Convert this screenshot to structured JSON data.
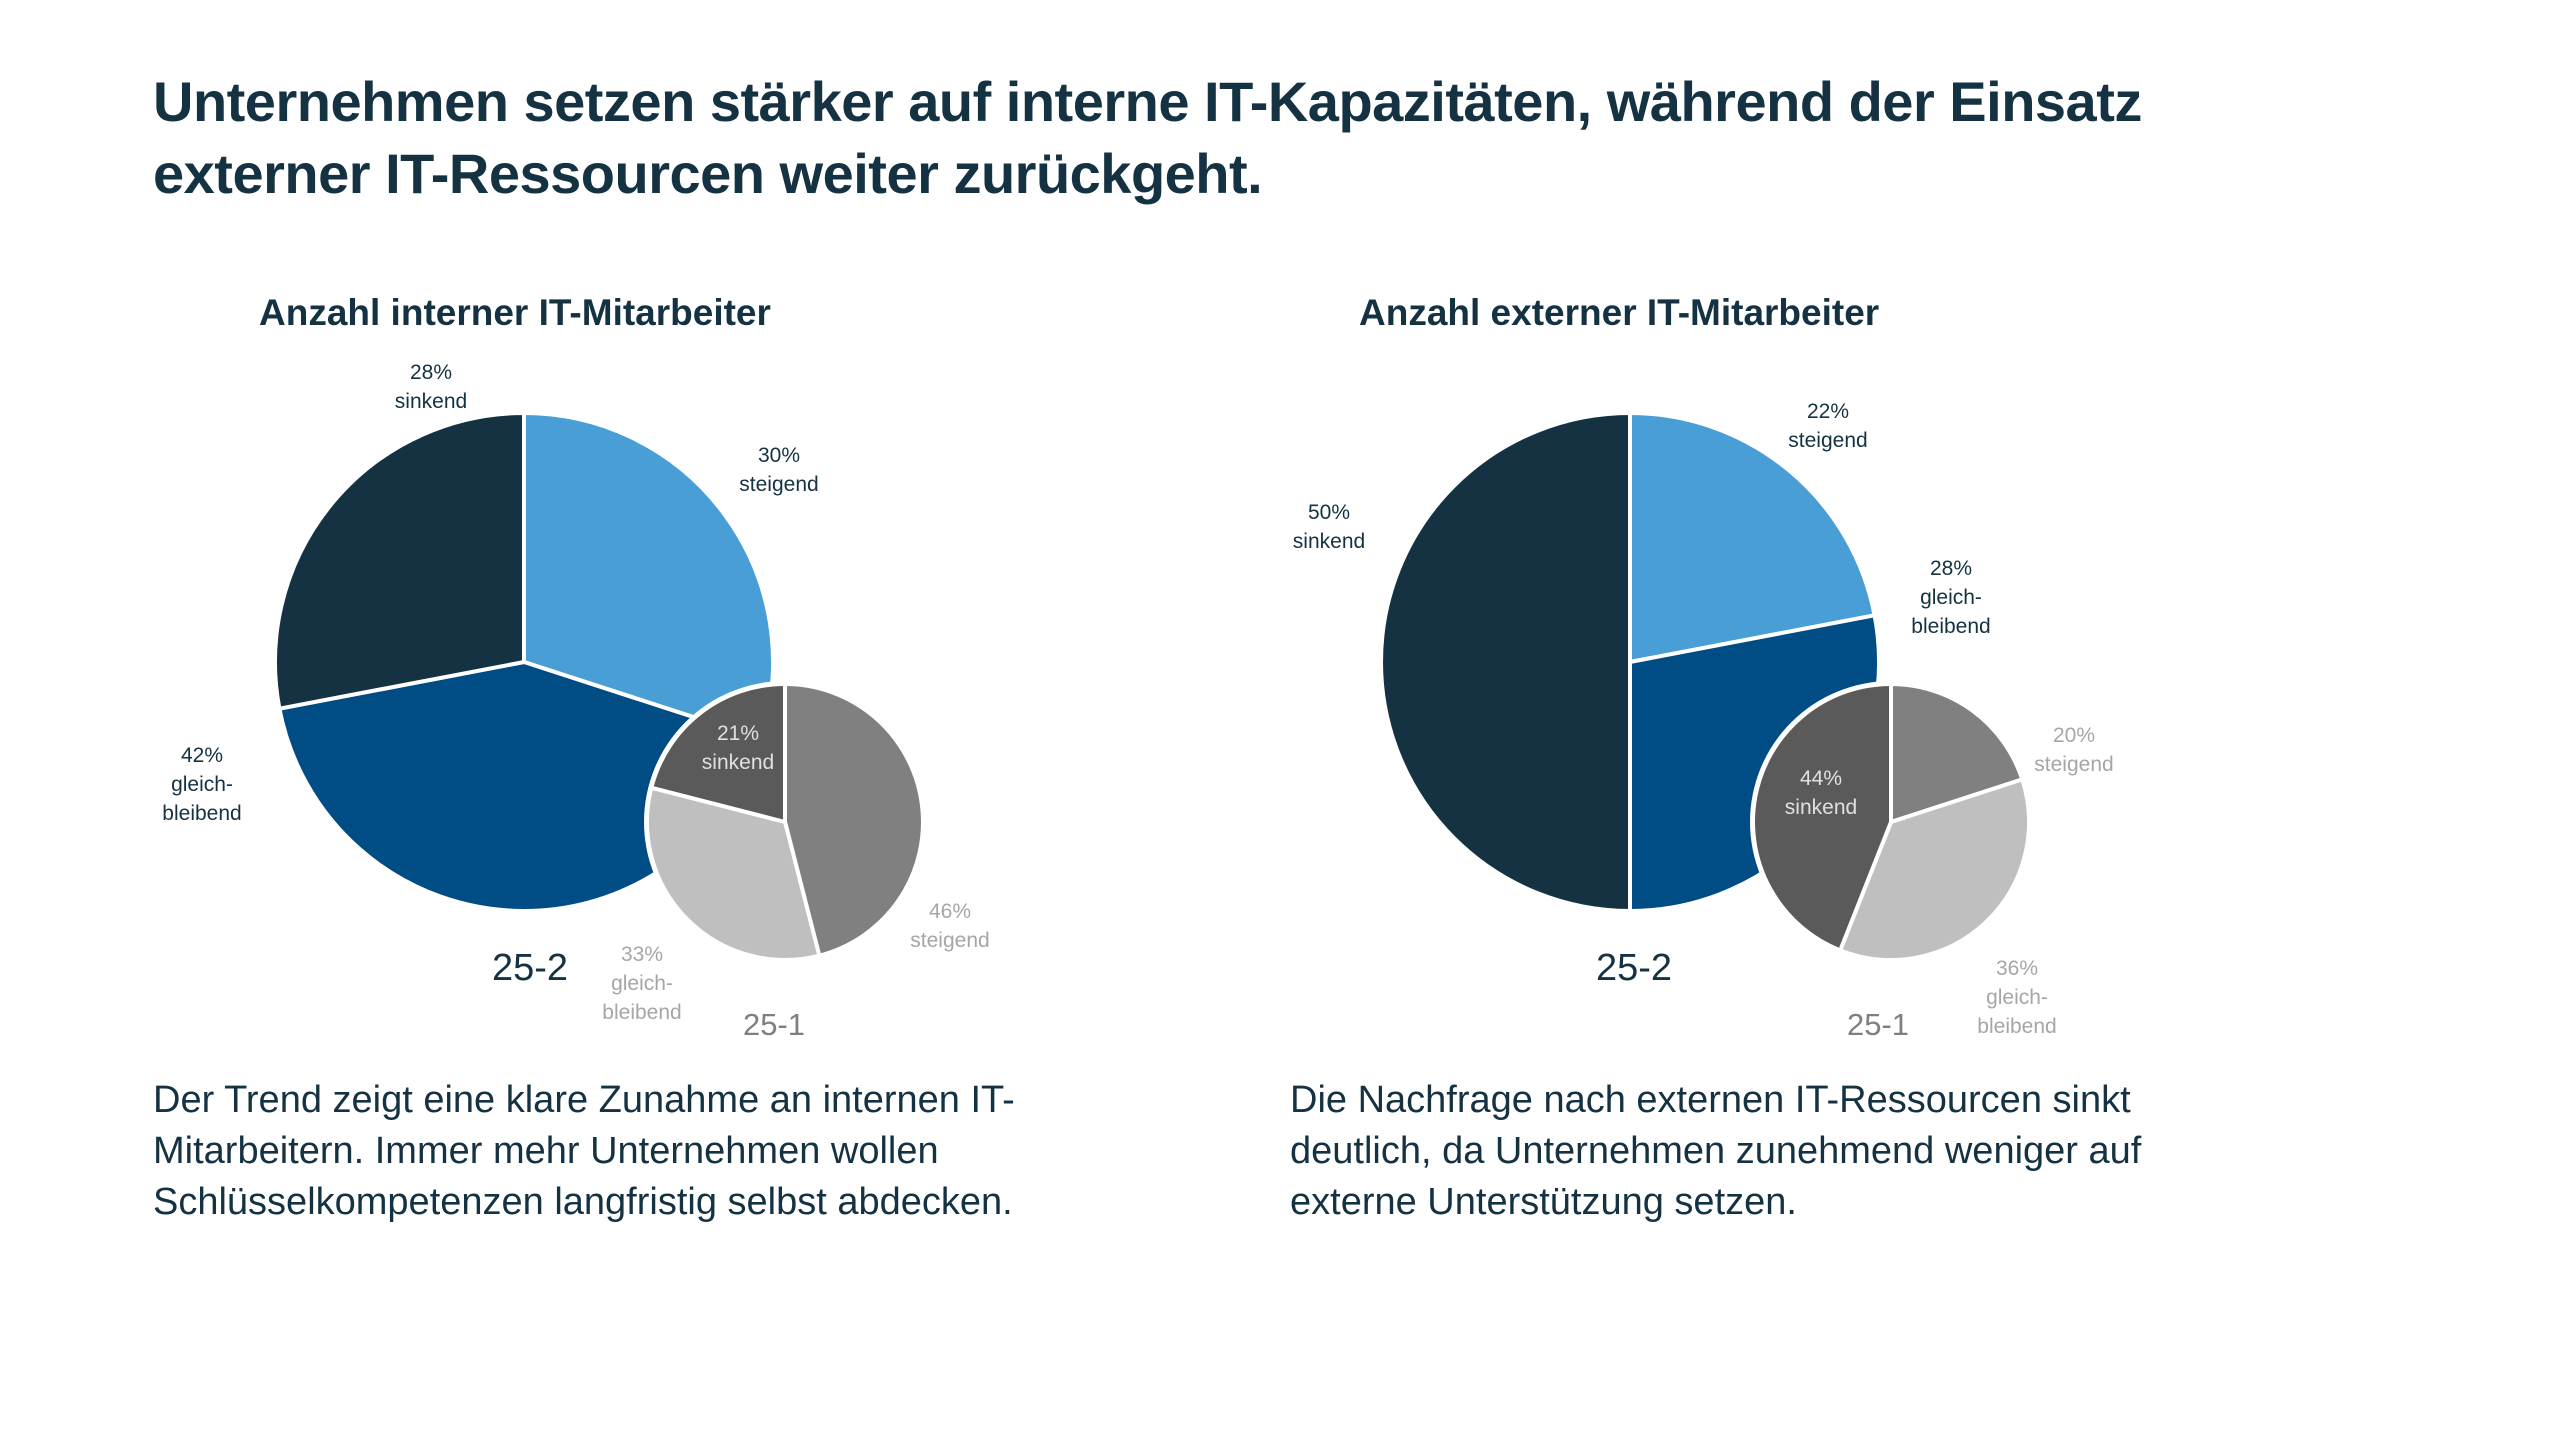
{
  "headline": {
    "line1": "Unternehmen setzen stärker auf interne IT-Kapazitäten, während der Einsatz",
    "line2": "externer IT-Ressourcen weiter zurückgeht."
  },
  "colors": {
    "text": "#153243",
    "steigend_current": "#4A9ED6",
    "gleichbleibend_current": "#004C85",
    "sinkend_current": "#153243",
    "steigend_previous": "#808080",
    "gleichbleibend_previous": "#BFBFBF",
    "sinkend_previous": "#5A5A5A",
    "previous_label": "#A6A6A6",
    "previous_period_label": "#7F7F7F"
  },
  "chart_data": [
    {
      "type": "pie",
      "title": "Anzahl interner IT-Mitarbeiter",
      "series": [
        {
          "name": "25-2",
          "categories": [
            "steigend",
            "gleichbleibend",
            "sinkend"
          ],
          "category_labels": [
            [
              "steigend"
            ],
            [
              "gleich-",
              "bleibend"
            ],
            [
              "sinkend"
            ]
          ],
          "values": [
            30,
            42,
            28
          ],
          "unit": "%"
        },
        {
          "name": "25-1",
          "categories": [
            "steigend",
            "gleichbleibend",
            "sinkend"
          ],
          "category_labels": [
            [
              "steigend"
            ],
            [
              "gleich-",
              "bleibend"
            ],
            [
              "sinkend"
            ]
          ],
          "values": [
            46,
            33,
            21
          ],
          "unit": "%"
        }
      ]
    },
    {
      "type": "pie",
      "title": "Anzahl externer IT-Mitarbeiter",
      "series": [
        {
          "name": "25-2",
          "categories": [
            "steigend",
            "gleichbleibend",
            "sinkend"
          ],
          "category_labels": [
            [
              "steigend"
            ],
            [
              "gleich-",
              "bleibend"
            ],
            [
              "sinkend"
            ]
          ],
          "values": [
            22,
            28,
            50
          ],
          "unit": "%"
        },
        {
          "name": "25-1",
          "categories": [
            "steigend",
            "gleichbleibend",
            "sinkend"
          ],
          "category_labels": [
            [
              "steigend"
            ],
            [
              "gleich-",
              "bleibend"
            ],
            [
              "sinkend"
            ]
          ],
          "values": [
            20,
            36,
            44
          ],
          "unit": "%"
        }
      ]
    }
  ],
  "body": {
    "left": "Der Trend zeigt eine klare Zunahme an internen IT-Mitarbeitern. Immer mehr Unternehmen wollen Schlüsselkompetenzen langfristig selbst abdecken.",
    "right": "Die Nachfrage nach externen IT-Ressourcen sinkt deutlich, da Unternehmen zunehmend weniger auf externe Unterstützung setzen."
  }
}
